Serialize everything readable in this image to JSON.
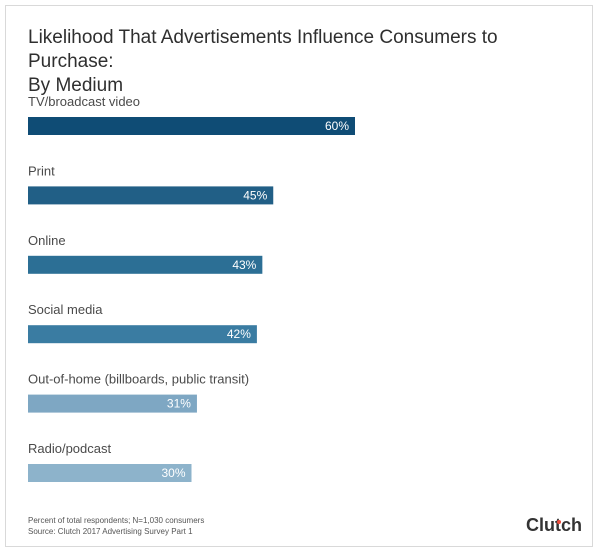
{
  "title_lines": [
    "Likelihood That Advertisements Influence Consumers to Purchase:",
    "By Medium"
  ],
  "footer": {
    "note": "Percent of total respondents; N=1,030 consumers",
    "source": "Source: Clutch 2017 Advertising Survey Part 1"
  },
  "brand": {
    "text": "Clutch",
    "accent_color": "#ef4b3a"
  },
  "chart_data": {
    "type": "bar",
    "orientation": "horizontal",
    "title": "Likelihood That Advertisements Influence Consumers to Purchase: By Medium",
    "categories": [
      "TV/broadcast video",
      "Print",
      "Online",
      "Social media",
      "Out-of-home (billboards, public transit)",
      "Radio/podcast"
    ],
    "values": [
      60,
      45,
      43,
      42,
      31,
      30
    ],
    "value_labels": [
      "60%",
      "45%",
      "43%",
      "42%",
      "31%",
      "30%"
    ],
    "colors": [
      "#0f4c75",
      "#215f86",
      "#2c6f95",
      "#3a7ca2",
      "#7ea7c3",
      "#8db3cb"
    ],
    "xlim": [
      0,
      100
    ],
    "grid": false,
    "legend": "none"
  }
}
